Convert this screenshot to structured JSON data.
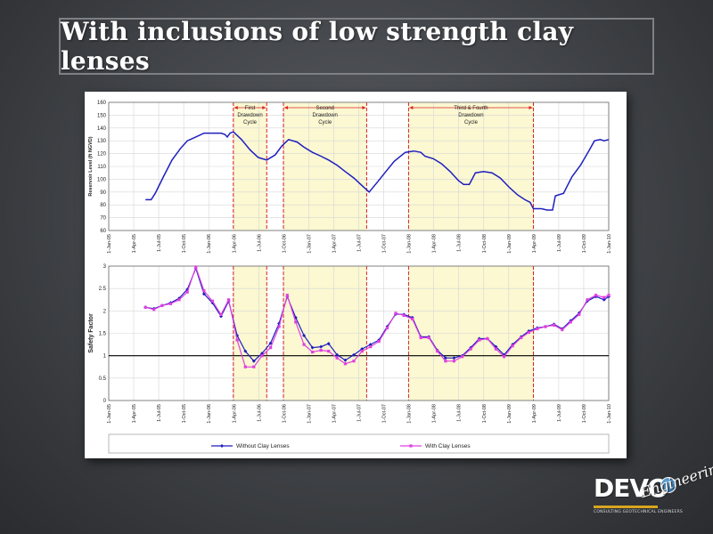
{
  "slide": {
    "title": "With inclusions of low strength clay lenses"
  },
  "logo": {
    "main": "DEVO",
    "script": "Engineering",
    "tagline": "CONSULTING GEOTECHNICAL ENGINEERS"
  },
  "chart_data": [
    {
      "type": "line",
      "ylabel": "Reservoir Level (ft NGVD)",
      "ylim": [
        60,
        160
      ],
      "yticks": [
        60,
        70,
        80,
        90,
        100,
        110,
        120,
        130,
        140,
        150,
        160
      ],
      "xlim": [
        "2005-01-01",
        "2010-01-01"
      ],
      "xtick_labels": [
        "1-Jan-05",
        "1-Apr-05",
        "1-Jul-05",
        "1-Oct-05",
        "1-Jan-06",
        "1-Apr-06",
        "1-Jul-06",
        "1-Oct-06",
        "1-Jan-07",
        "1-Apr-07",
        "1-Jul-07",
        "1-Oct-07",
        "1-Jan-08",
        "1-Apr-08",
        "1-Jul-08",
        "1-Oct-08",
        "1-Jan-09",
        "1-Apr-09",
        "1-Jul-09",
        "1-Oct-09",
        "1-Jan-10"
      ],
      "grid": true,
      "series": [
        {
          "values": [
            [
              "2005-05-15",
              84
            ],
            [
              "2005-06-05",
              84
            ],
            [
              "2005-06-20",
              89
            ],
            [
              "2005-07-20",
              102
            ],
            [
              "2005-08-20",
              115
            ],
            [
              "2005-09-20",
              124
            ],
            [
              "2005-10-15",
              130
            ],
            [
              "2005-11-15",
              133
            ],
            [
              "2005-12-15",
              136
            ],
            [
              "2006-01-15",
              136
            ],
            [
              "2006-02-15",
              136
            ],
            [
              "2006-03-01",
              135
            ],
            [
              "2006-03-10",
              133
            ],
            [
              "2006-03-20",
              136
            ],
            [
              "2006-04-01",
              137
            ],
            [
              "2006-05-01",
              131
            ],
            [
              "2006-06-01",
              123
            ],
            [
              "2006-07-01",
              117
            ],
            [
              "2006-08-01",
              115
            ],
            [
              "2006-09-01",
              119
            ],
            [
              "2006-09-25",
              126
            ],
            [
              "2006-10-20",
              131
            ],
            [
              "2006-11-20",
              129
            ],
            [
              "2006-12-15",
              125
            ],
            [
              "2007-01-15",
              121
            ],
            [
              "2007-02-15",
              118
            ],
            [
              "2007-03-15",
              115
            ],
            [
              "2007-04-15",
              111
            ],
            [
              "2007-05-15",
              106
            ],
            [
              "2007-06-15",
              101
            ],
            [
              "2007-07-15",
              95
            ],
            [
              "2007-08-10",
              90
            ],
            [
              "2007-09-10",
              98
            ],
            [
              "2007-10-10",
              106
            ],
            [
              "2007-11-10",
              114
            ],
            [
              "2007-12-20",
              121
            ],
            [
              "2008-01-20",
              122
            ],
            [
              "2008-02-15",
              121
            ],
            [
              "2008-03-01",
              118
            ],
            [
              "2008-04-01",
              116
            ],
            [
              "2008-05-01",
              112
            ],
            [
              "2008-06-01",
              106
            ],
            [
              "2008-07-01",
              99
            ],
            [
              "2008-07-20",
              96
            ],
            [
              "2008-08-10",
              96
            ],
            [
              "2008-09-01",
              105
            ],
            [
              "2008-10-01",
              106
            ],
            [
              "2008-11-01",
              105
            ],
            [
              "2008-12-01",
              101
            ],
            [
              "2009-01-01",
              94
            ],
            [
              "2009-02-01",
              88
            ],
            [
              "2009-03-01",
              84
            ],
            [
              "2009-03-20",
              82
            ],
            [
              "2009-04-01",
              77
            ],
            [
              "2009-05-01",
              77
            ],
            [
              "2009-05-20",
              76
            ],
            [
              "2009-06-10",
              76
            ],
            [
              "2009-06-20",
              87
            ],
            [
              "2009-07-20",
              89
            ],
            [
              "2009-08-20",
              102
            ],
            [
              "2009-09-20",
              111
            ],
            [
              "2009-10-20",
              122
            ],
            [
              "2009-11-10",
              130
            ],
            [
              "2009-12-01",
              131
            ],
            [
              "2009-12-15",
              130
            ],
            [
              "2010-01-01",
              131
            ]
          ]
        }
      ],
      "cycles": [
        {
          "label_line1": "First",
          "label_line2": "Drawdown",
          "label_line3": "Cycle",
          "start": "2006-04-01",
          "end": "2006-08-01"
        },
        {
          "label_line1": "Second",
          "label_line2": "Drawdown",
          "label_line3": "Cycle",
          "start": "2006-10-01",
          "end": "2007-08-01"
        },
        {
          "label_line1": "Third & Fourth",
          "label_line2": "Drawdown",
          "label_line3": "Cycle",
          "start": "2008-01-01",
          "end": "2009-04-01"
        }
      ]
    },
    {
      "type": "line",
      "ylabel": "Safety Factor",
      "ylim": [
        0,
        3
      ],
      "yticks": [
        0,
        0.5,
        1,
        1.5,
        2,
        2.5,
        3
      ],
      "reference_line": 1,
      "xlim": [
        "2005-01-01",
        "2010-01-01"
      ],
      "xtick_labels": [
        "1-Jan-05",
        "1-Apr-05",
        "1-Jul-05",
        "1-Oct-05",
        "1-Jan-06",
        "1-Apr-06",
        "1-Jul-06",
        "1-Oct-06",
        "1-Jan-07",
        "1-Apr-07",
        "1-Jul-07",
        "1-Oct-07",
        "1-Jan-08",
        "1-Apr-08",
        "1-Jul-08",
        "1-Oct-08",
        "1-Jan-09",
        "1-Apr-09",
        "1-Jul-09",
        "1-Oct-09",
        "1-Jan-10"
      ],
      "grid": true,
      "legend_position": "bottom",
      "series": [
        {
          "name": "Without Clay Lenses",
          "color": "#1f1fbf",
          "values": [
            [
              "2005-05-15",
              2.08
            ],
            [
              "2005-06-15",
              2.05
            ],
            [
              "2005-07-15",
              2.12
            ],
            [
              "2005-08-15",
              2.18
            ],
            [
              "2005-09-15",
              2.28
            ],
            [
              "2005-10-15",
              2.48
            ],
            [
              "2005-11-15",
              2.95
            ],
            [
              "2005-12-15",
              2.38
            ],
            [
              "2006-01-15",
              2.18
            ],
            [
              "2006-02-15",
              1.88
            ],
            [
              "2006-03-15",
              2.22
            ],
            [
              "2006-04-15",
              1.45
            ],
            [
              "2006-05-15",
              1.1
            ],
            [
              "2006-06-15",
              0.88
            ],
            [
              "2006-07-15",
              1.05
            ],
            [
              "2006-08-15",
              1.28
            ],
            [
              "2006-09-15",
              1.72
            ],
            [
              "2006-10-15",
              2.32
            ],
            [
              "2006-11-15",
              1.85
            ],
            [
              "2006-12-15",
              1.45
            ],
            [
              "2007-01-15",
              1.18
            ],
            [
              "2007-02-15",
              1.2
            ],
            [
              "2007-03-15",
              1.27
            ],
            [
              "2007-04-15",
              1.02
            ],
            [
              "2007-05-15",
              0.9
            ],
            [
              "2007-06-15",
              1.02
            ],
            [
              "2007-07-15",
              1.15
            ],
            [
              "2007-08-15",
              1.25
            ],
            [
              "2007-09-15",
              1.35
            ],
            [
              "2007-10-15",
              1.65
            ],
            [
              "2007-11-15",
              1.93
            ],
            [
              "2007-12-15",
              1.92
            ],
            [
              "2008-01-15",
              1.85
            ],
            [
              "2008-02-15",
              1.42
            ],
            [
              "2008-03-15",
              1.42
            ],
            [
              "2008-04-15",
              1.12
            ],
            [
              "2008-05-15",
              0.95
            ],
            [
              "2008-06-15",
              0.95
            ],
            [
              "2008-07-15",
              1.0
            ],
            [
              "2008-08-15",
              1.18
            ],
            [
              "2008-09-15",
              1.38
            ],
            [
              "2008-10-15",
              1.38
            ],
            [
              "2008-11-15",
              1.2
            ],
            [
              "2008-12-15",
              1.02
            ],
            [
              "2009-01-15",
              1.25
            ],
            [
              "2009-02-15",
              1.42
            ],
            [
              "2009-03-15",
              1.55
            ],
            [
              "2009-04-15",
              1.62
            ],
            [
              "2009-05-15",
              1.65
            ],
            [
              "2009-06-15",
              1.7
            ],
            [
              "2009-07-15",
              1.6
            ],
            [
              "2009-08-15",
              1.78
            ],
            [
              "2009-09-15",
              1.95
            ],
            [
              "2009-10-15",
              2.22
            ],
            [
              "2009-11-15",
              2.32
            ],
            [
              "2009-12-15",
              2.25
            ],
            [
              "2010-01-01",
              2.32
            ]
          ]
        },
        {
          "name": "With Clay Lenses",
          "color": "#e040e0",
          "values": [
            [
              "2005-05-15",
              2.08
            ],
            [
              "2005-06-15",
              2.03
            ],
            [
              "2005-07-15",
              2.12
            ],
            [
              "2005-08-15",
              2.16
            ],
            [
              "2005-09-15",
              2.25
            ],
            [
              "2005-10-15",
              2.42
            ],
            [
              "2005-11-15",
              2.98
            ],
            [
              "2005-12-15",
              2.45
            ],
            [
              "2006-01-15",
              2.22
            ],
            [
              "2006-02-15",
              1.92
            ],
            [
              "2006-03-15",
              2.25
            ],
            [
              "2006-04-15",
              1.35
            ],
            [
              "2006-05-15",
              0.75
            ],
            [
              "2006-06-15",
              0.75
            ],
            [
              "2006-07-15",
              1.0
            ],
            [
              "2006-08-15",
              1.18
            ],
            [
              "2006-09-15",
              1.65
            ],
            [
              "2006-10-15",
              2.35
            ],
            [
              "2006-11-15",
              1.75
            ],
            [
              "2006-12-15",
              1.25
            ],
            [
              "2007-01-15",
              1.08
            ],
            [
              "2007-02-15",
              1.12
            ],
            [
              "2007-03-15",
              1.1
            ],
            [
              "2007-04-15",
              0.95
            ],
            [
              "2007-05-15",
              0.82
            ],
            [
              "2007-06-15",
              0.88
            ],
            [
              "2007-07-15",
              1.1
            ],
            [
              "2007-08-15",
              1.2
            ],
            [
              "2007-09-15",
              1.32
            ],
            [
              "2007-10-15",
              1.62
            ],
            [
              "2007-11-15",
              1.95
            ],
            [
              "2007-12-15",
              1.9
            ],
            [
              "2008-01-15",
              1.82
            ],
            [
              "2008-02-15",
              1.4
            ],
            [
              "2008-03-15",
              1.4
            ],
            [
              "2008-04-15",
              1.1
            ],
            [
              "2008-05-15",
              0.88
            ],
            [
              "2008-06-15",
              0.88
            ],
            [
              "2008-07-15",
              0.98
            ],
            [
              "2008-08-15",
              1.15
            ],
            [
              "2008-09-15",
              1.35
            ],
            [
              "2008-10-15",
              1.38
            ],
            [
              "2008-11-15",
              1.15
            ],
            [
              "2008-12-15",
              0.98
            ],
            [
              "2009-01-15",
              1.22
            ],
            [
              "2009-02-15",
              1.4
            ],
            [
              "2009-03-15",
              1.52
            ],
            [
              "2009-04-15",
              1.6
            ],
            [
              "2009-05-15",
              1.65
            ],
            [
              "2009-06-15",
              1.68
            ],
            [
              "2009-07-15",
              1.58
            ],
            [
              "2009-08-15",
              1.75
            ],
            [
              "2009-09-15",
              1.92
            ],
            [
              "2009-10-15",
              2.25
            ],
            [
              "2009-11-15",
              2.35
            ],
            [
              "2009-12-15",
              2.3
            ],
            [
              "2010-01-01",
              2.35
            ]
          ]
        }
      ]
    }
  ]
}
